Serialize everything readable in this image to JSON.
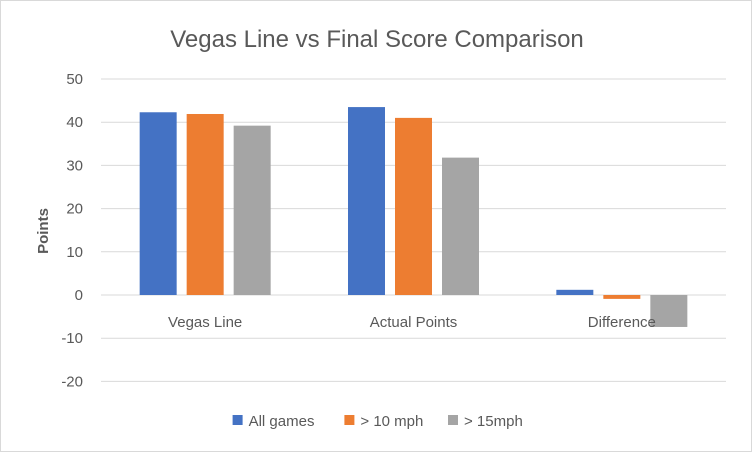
{
  "chart_data": {
    "type": "bar",
    "title": "Vegas Line vs Final Score Comparison",
    "xlabel": "",
    "ylabel": "Points",
    "ylim": [
      -20,
      50
    ],
    "yticks": [
      50,
      40,
      30,
      20,
      10,
      0,
      -10,
      -20
    ],
    "grid": true,
    "legend_position": "bottom",
    "categories": [
      "Vegas Line",
      "Actual Points",
      "Difference"
    ],
    "series": [
      {
        "name": "All games",
        "color": "#4472c4",
        "values": [
          42.3,
          43.5,
          1.2
        ]
      },
      {
        "name": "> 10 mph",
        "color": "#ed7d31",
        "values": [
          41.9,
          41.0,
          -0.9
        ]
      },
      {
        "name": "> 15mph",
        "color": "#a5a5a5",
        "values": [
          39.2,
          31.8,
          -7.4
        ]
      }
    ]
  }
}
